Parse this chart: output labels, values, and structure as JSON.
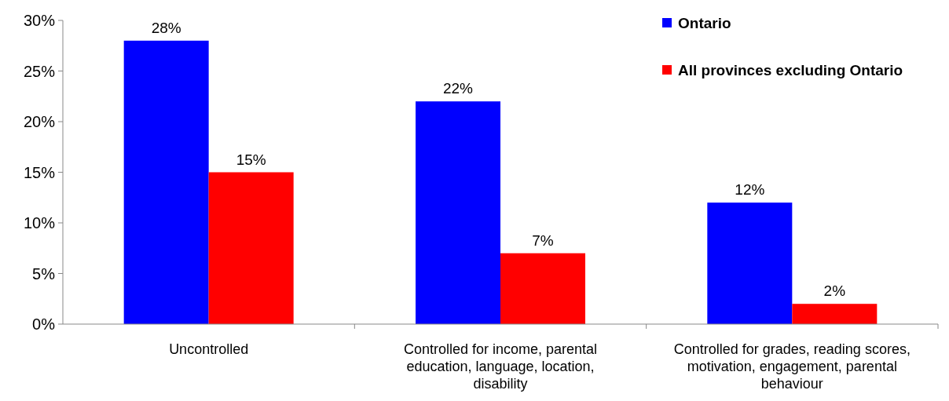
{
  "chart_data": {
    "type": "bar",
    "categories": [
      "Uncontrolled",
      "Controlled for income, parental education, language, location, disability",
      "Controlled for grades, reading scores, motivation, engagement, parental behaviour"
    ],
    "series": [
      {
        "name": "Ontario",
        "color": "#0000ff",
        "values": [
          28,
          22,
          12
        ],
        "value_labels": [
          "28%",
          "22%",
          "12%"
        ]
      },
      {
        "name": "All provinces excluding Ontario",
        "color": "#ff0000",
        "values": [
          15,
          7,
          2
        ],
        "value_labels": [
          "15%",
          "7%",
          "2%"
        ]
      }
    ],
    "ylim": [
      0,
      30
    ],
    "yticks": [
      {
        "value": 0,
        "label": "0%"
      },
      {
        "value": 5,
        "label": "5%"
      },
      {
        "value": 10,
        "label": "10%"
      },
      {
        "value": 15,
        "label": "15%"
      },
      {
        "value": 20,
        "label": "20%"
      },
      {
        "value": 25,
        "label": "25%"
      },
      {
        "value": 30,
        "label": "30%"
      }
    ],
    "grid": false,
    "legend": "top right"
  }
}
